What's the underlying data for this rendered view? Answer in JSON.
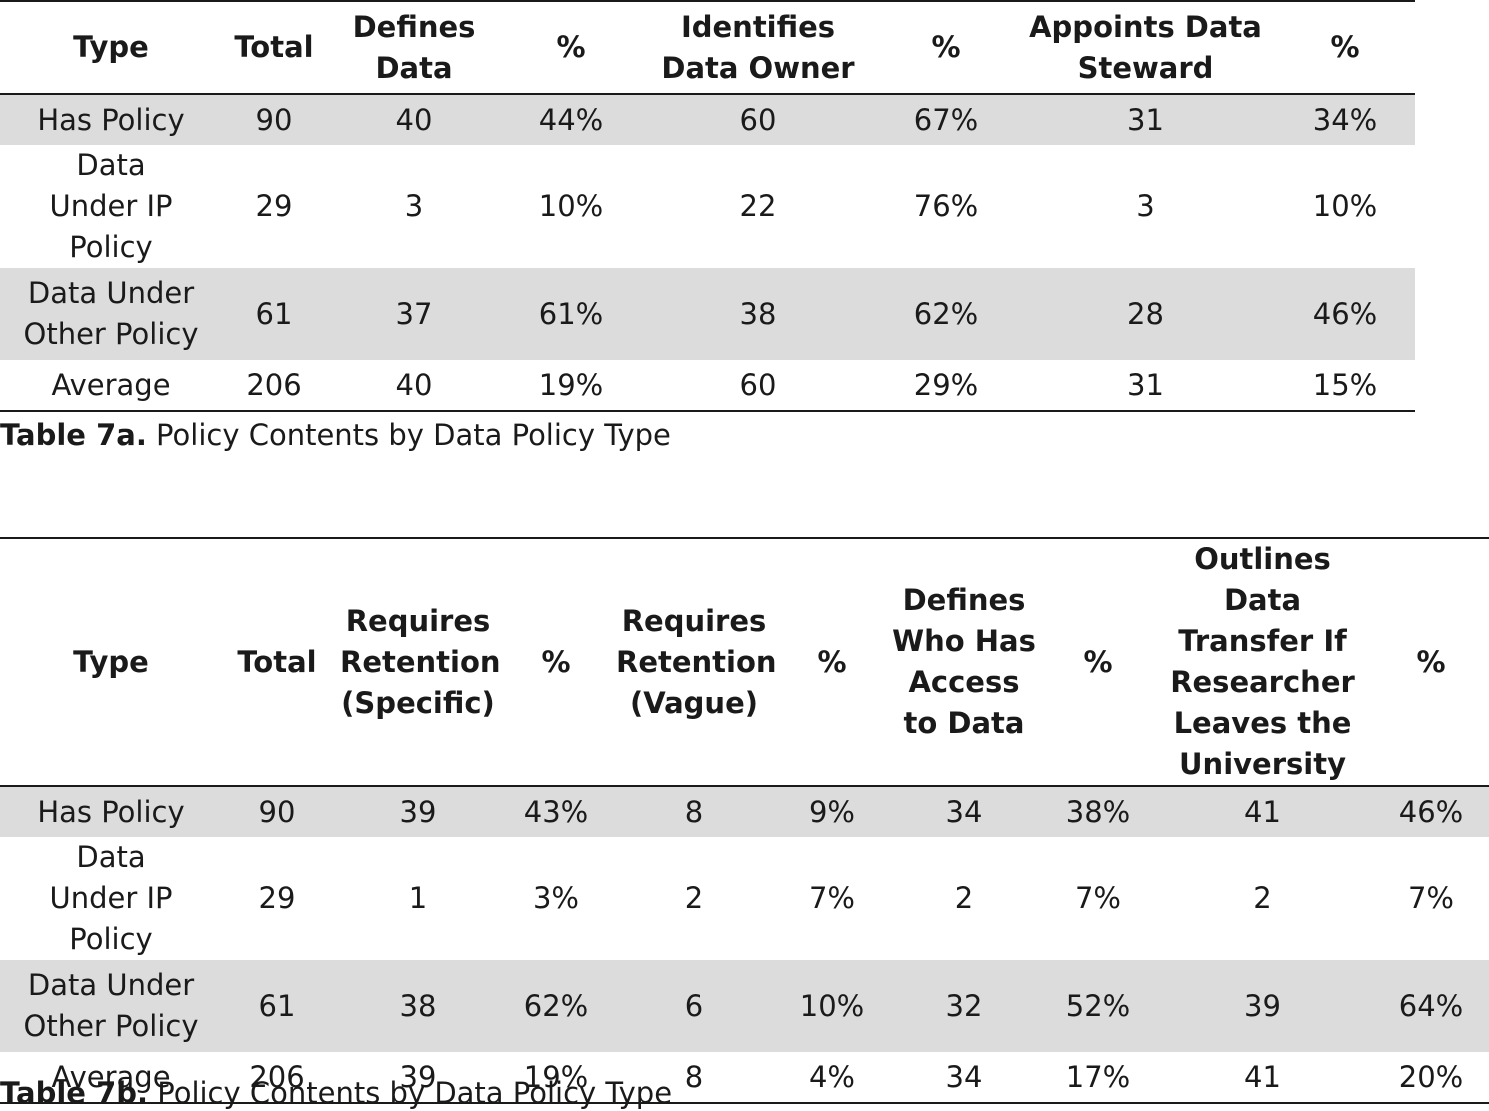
{
  "table_7a": {
    "headers": [
      "Type",
      "Total",
      "Defines Data",
      "%",
      "Identifies Data Owner",
      "%",
      "Appoints Data Steward",
      "%"
    ],
    "rows": [
      [
        "Has Policy",
        "90",
        "40",
        "44%",
        "60",
        "67%",
        "31",
        "34%"
      ],
      [
        "Data Under IP Policy",
        "29",
        "3",
        "10%",
        "22",
        "76%",
        "3",
        "10%"
      ],
      [
        "Data Under Other Policy",
        "61",
        "37",
        "61%",
        "38",
        "62%",
        "28",
        "46%"
      ],
      [
        "Average",
        "206",
        "40",
        "19%",
        "60",
        "29%",
        "31",
        "15%"
      ]
    ],
    "caption_label": "Table 7a.",
    "caption_text": " Policy Contents by Data Policy Type"
  },
  "table_7b": {
    "headers": [
      "Type",
      "Total",
      "Requires Retention (Specific)",
      "%",
      "Requires Retention (Vague)",
      "%",
      "Defines Who Has Access to Data",
      "%",
      "Outlines Data Transfer If Researcher Leaves the University",
      "%"
    ],
    "rows": [
      [
        "Has Policy",
        "90",
        "39",
        "43%",
        "8",
        "9%",
        "34",
        "38%",
        "41",
        "46%"
      ],
      [
        "Data Under IP Policy",
        "29",
        "1",
        "3%",
        "2",
        "7%",
        "2",
        "7%",
        "2",
        "7%"
      ],
      [
        "Data Under Other Policy",
        "61",
        "38",
        "62%",
        "6",
        "10%",
        "32",
        "52%",
        "39",
        "64%"
      ],
      [
        "Average",
        "206",
        "39",
        "19%",
        "8",
        "4%",
        "34",
        "17%",
        "41",
        "20%"
      ]
    ],
    "caption_label": "Table 7b.",
    "caption_text": " Policy Contents by Data Policy Type"
  },
  "colors": {
    "shaded_row": "#dcdcdc",
    "rule": "#1a1a1a",
    "text": "#1a1a1a"
  }
}
